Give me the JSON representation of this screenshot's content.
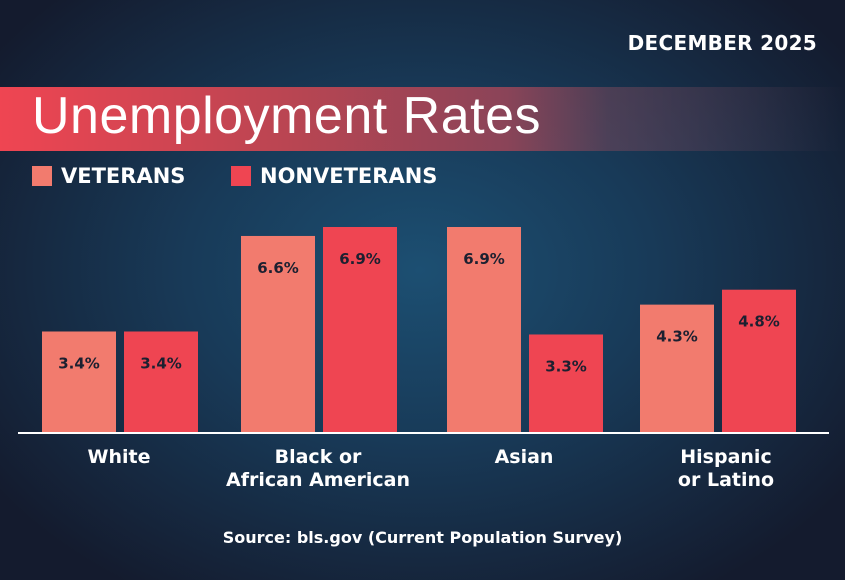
{
  "date": "DECEMBER 2025",
  "title": "Unemployment Rates",
  "source": "Source: bls.gov (Current Population Survey)",
  "colors": {
    "veterans": "#f27b6e",
    "nonveterans": "#ef4552",
    "label_text": "#1c2030"
  },
  "chart_data": {
    "type": "bar",
    "title": "Unemployment Rates",
    "categories": [
      "White",
      "Black or\nAfrican American",
      "Asian",
      "Hispanic\nor Latino"
    ],
    "series": [
      {
        "name": "VETERANS",
        "values": [
          3.4,
          6.6,
          6.9,
          4.3
        ],
        "labels": [
          "3.4%",
          "6.6%",
          "6.9%",
          "4.3%"
        ]
      },
      {
        "name": "NONVETERANS",
        "values": [
          3.4,
          6.9,
          3.3,
          4.8
        ],
        "labels": [
          "3.4%",
          "6.9%",
          "3.3%",
          "4.8%"
        ]
      }
    ],
    "ylim": [
      0,
      6.9
    ],
    "grid": false,
    "legend": "top-left"
  }
}
